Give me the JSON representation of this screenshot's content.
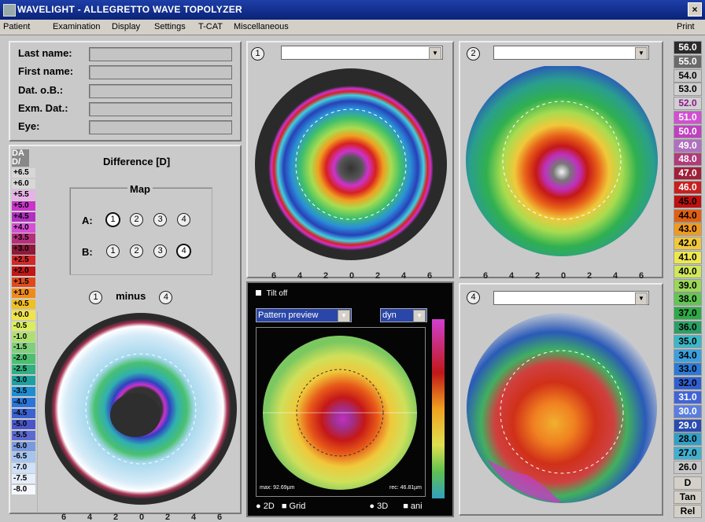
{
  "titlebar": {
    "title": "WAVELIGHT  -  ALLEGRETTO WAVE TOPOLYZER",
    "close": "×"
  },
  "menu": [
    "Patient",
    "Examination",
    "Display",
    "Settings",
    "T-CAT",
    "Miscellaneous",
    "Print"
  ],
  "patient": {
    "labels": [
      "Last name:",
      "First name:",
      "Dat. o.B.:",
      "Exm. Dat.:",
      "Eye:"
    ],
    "values": [
      "",
      "",
      "",
      "",
      ""
    ]
  },
  "difference": {
    "badge_top": "DA",
    "badge_bottom": "D/",
    "title": "Difference [D]",
    "map_label": "Map",
    "row_a": "A:",
    "row_b": "B:",
    "a_selected": 1,
    "b_selected": 4,
    "minus_left": "1",
    "minus_word": "minus",
    "minus_right": "4",
    "scale": [
      {
        "v": "+6.5",
        "c": "#d7d7d7"
      },
      {
        "v": "+6.0",
        "c": "#d7d7d7"
      },
      {
        "v": "+5.5",
        "c": "#e6b3e6"
      },
      {
        "v": "+5.0",
        "c": "#cc33cc"
      },
      {
        "v": "+4.5",
        "c": "#b030c0"
      },
      {
        "v": "+4.0",
        "c": "#d64fd6"
      },
      {
        "v": "+3.5",
        "c": "#b4307a"
      },
      {
        "v": "+3.0",
        "c": "#8c1a3a"
      },
      {
        "v": "+2.5",
        "c": "#d22828"
      },
      {
        "v": "+2.0",
        "c": "#c01818"
      },
      {
        "v": "+1.5",
        "c": "#e04a1a"
      },
      {
        "v": "+1.0",
        "c": "#f08a1a"
      },
      {
        "v": "+0.5",
        "c": "#f0c020"
      },
      {
        "v": "+0.0",
        "c": "#f0e44a"
      },
      {
        "v": "-0.5",
        "c": "#d9ee5a"
      },
      {
        "v": "-1.0",
        "c": "#aee070"
      },
      {
        "v": "-1.5",
        "c": "#7ed07a"
      },
      {
        "v": "-2.0",
        "c": "#4cc070"
      },
      {
        "v": "-2.5",
        "c": "#30b080"
      },
      {
        "v": "-3.0",
        "c": "#1ea0a0"
      },
      {
        "v": "-3.5",
        "c": "#1e8ed0"
      },
      {
        "v": "-4.0",
        "c": "#2a76d8"
      },
      {
        "v": "-4.5",
        "c": "#3a62d0"
      },
      {
        "v": "-5.0",
        "c": "#4a56c8"
      },
      {
        "v": "-5.5",
        "c": "#5a6ad0"
      },
      {
        "v": "-6.0",
        "c": "#7a9ae0"
      },
      {
        "v": "-6.5",
        "c": "#a6c4ee"
      },
      {
        "v": "-7.0",
        "c": "#cfe0f7"
      },
      {
        "v": "-7.5",
        "c": "#e6eefb"
      },
      {
        "v": "-8.0",
        "c": "#f5f8ff"
      }
    ]
  },
  "maps": {
    "m1": {
      "num": "1",
      "dropdown": ""
    },
    "m2": {
      "num": "2",
      "dropdown": ""
    },
    "m4": {
      "num": "4",
      "dropdown": ""
    }
  },
  "axis_ticks": [
    "6",
    "4",
    "2",
    "0",
    "2",
    "4",
    "6"
  ],
  "center": {
    "tilt": "Tilt off",
    "mode": "Pattern preview",
    "dyn": "dyn",
    "max": "max: 92.69µm",
    "rec": "rec: 46.81µm",
    "options": [
      "2D",
      "Grid",
      "3D",
      "ani"
    ]
  },
  "right_scale": [
    {
      "v": "56.0",
      "c": "#2a2a2a",
      "t": "#fff"
    },
    {
      "v": "55.0",
      "c": "#6a6a6a",
      "t": "#fff"
    },
    {
      "v": "54.0",
      "c": "#c8c8c8",
      "t": "#000"
    },
    {
      "v": "53.0",
      "c": "#d0d0d0",
      "t": "#000"
    },
    {
      "v": "52.0",
      "c": "#d0d0d0",
      "t": "#8a1a8a"
    },
    {
      "v": "51.0",
      "c": "#d24fd2",
      "t": "#fff"
    },
    {
      "v": "50.0",
      "c": "#c040c0",
      "t": "#fff"
    },
    {
      "v": "49.0",
      "c": "#b070c0",
      "t": "#fff"
    },
    {
      "v": "48.0",
      "c": "#b03a7a",
      "t": "#fff"
    },
    {
      "v": "47.0",
      "c": "#a0203a",
      "t": "#fff"
    },
    {
      "v": "46.0",
      "c": "#c82020",
      "t": "#fff"
    },
    {
      "v": "45.0",
      "c": "#c01010",
      "t": "#000"
    },
    {
      "v": "44.0",
      "c": "#e06010",
      "t": "#000"
    },
    {
      "v": "43.0",
      "c": "#f09a20",
      "t": "#000"
    },
    {
      "v": "42.0",
      "c": "#f0c83a",
      "t": "#000"
    },
    {
      "v": "41.0",
      "c": "#eee850",
      "t": "#000"
    },
    {
      "v": "40.0",
      "c": "#cfe85a",
      "t": "#000"
    },
    {
      "v": "39.0",
      "c": "#9cd858",
      "t": "#000"
    },
    {
      "v": "38.0",
      "c": "#60c850",
      "t": "#000"
    },
    {
      "v": "37.0",
      "c": "#2eaa46",
      "t": "#000"
    },
    {
      "v": "36.0",
      "c": "#2aa066",
      "t": "#000"
    },
    {
      "v": "35.0",
      "c": "#3ab8c8",
      "t": "#000"
    },
    {
      "v": "34.0",
      "c": "#3aa0e0",
      "t": "#000"
    },
    {
      "v": "33.0",
      "c": "#2a7ad8",
      "t": "#000"
    },
    {
      "v": "32.0",
      "c": "#3060d0",
      "t": "#000"
    },
    {
      "v": "31.0",
      "c": "#4064d8",
      "t": "#fff"
    },
    {
      "v": "30.0",
      "c": "#5a7ee0",
      "t": "#fff"
    },
    {
      "v": "29.0",
      "c": "#2a4ab0",
      "t": "#fff"
    },
    {
      "v": "28.0",
      "c": "#30a0c8",
      "t": "#000"
    },
    {
      "v": "27.0",
      "c": "#40b0d0",
      "t": "#000"
    },
    {
      "v": "26.0",
      "c": "#c8c8c8",
      "t": "#000"
    }
  ],
  "right_buttons": [
    "D",
    "Tan",
    "Rel"
  ]
}
